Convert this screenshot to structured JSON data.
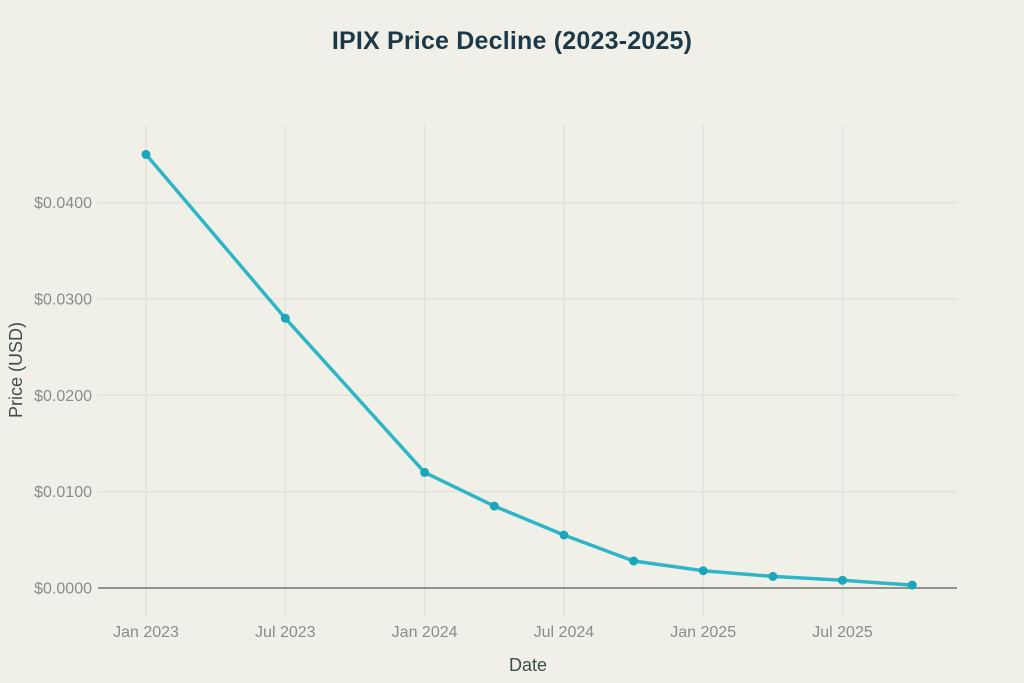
{
  "chart_data": {
    "type": "line",
    "title": "IPIX Price Decline (2023-2025)",
    "xlabel": "Date",
    "ylabel": "Price (USD)",
    "grid": true,
    "legend": "none",
    "ylim": [
      0,
      0.048
    ],
    "series": [
      {
        "name": "IPIX price",
        "points": [
          {
            "date": "Jan 2023",
            "x_months": 0,
            "value": 0.045
          },
          {
            "date": "Jul 2023",
            "x_months": 6,
            "value": 0.028
          },
          {
            "date": "Jan 2024",
            "x_months": 12,
            "value": 0.012
          },
          {
            "date": "Apr 2024",
            "x_months": 15,
            "value": 0.0085
          },
          {
            "date": "Jul 2024",
            "x_months": 18,
            "value": 0.0055
          },
          {
            "date": "Oct 2024",
            "x_months": 21,
            "value": 0.0028
          },
          {
            "date": "Jan 2025",
            "x_months": 24,
            "value": 0.0018
          },
          {
            "date": "Apr 2025",
            "x_months": 27,
            "value": 0.0012
          },
          {
            "date": "Jul 2025",
            "x_months": 30,
            "value": 0.0008
          },
          {
            "date": "Oct 2025",
            "x_months": 33,
            "value": 0.0003
          }
        ]
      }
    ],
    "x_ticks": [
      {
        "label": "Jan 2023",
        "x_months": 0
      },
      {
        "label": "Jul 2023",
        "x_months": 6
      },
      {
        "label": "Jan 2024",
        "x_months": 12
      },
      {
        "label": "Jul 2024",
        "x_months": 18
      },
      {
        "label": "Jan 2025",
        "x_months": 24
      },
      {
        "label": "Jul 2025",
        "x_months": 30
      }
    ],
    "y_ticks": [
      {
        "label": "$0.0000",
        "value": 0.0
      },
      {
        "label": "$0.0100",
        "value": 0.01
      },
      {
        "label": "$0.0200",
        "value": 0.02
      },
      {
        "label": "$0.0300",
        "value": 0.03
      },
      {
        "label": "$0.0400",
        "value": 0.04
      }
    ],
    "colors": {
      "background": "#F0F0E9",
      "line": "#2EB6C7",
      "marker": "#1BA6BB",
      "grid": "#E2E3DB",
      "axis_line": "#71726E",
      "tick_label": "#8B8C88",
      "axis_title": "#3E4E4C",
      "title": "#1C3947"
    }
  }
}
